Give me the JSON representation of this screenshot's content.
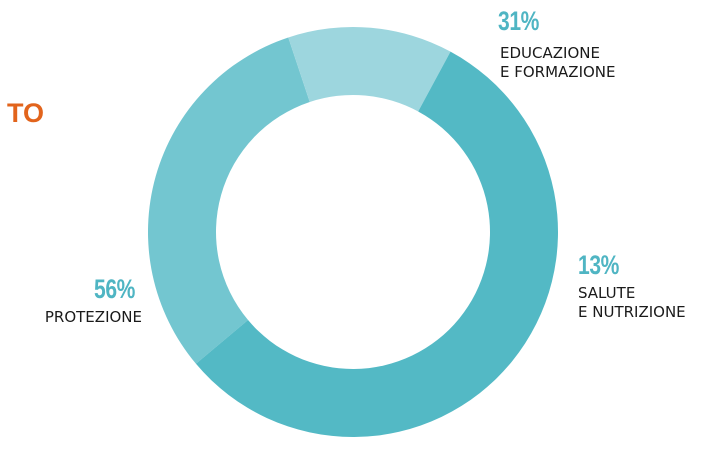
{
  "clipped_title_fragment": "TO",
  "colors": {
    "educazione": "#73c6d0",
    "salute": "#9dd6de",
    "protezione": "#53b9c5",
    "percent_text": "#4fb5c3",
    "title_orange": "#e2641c"
  },
  "chart_data": {
    "type": "pie",
    "donut": true,
    "slices": [
      {
        "percent_label": "31%",
        "value": 31,
        "label_lines": [
          "EDUCAZIONE",
          "E FORMAZIONE"
        ]
      },
      {
        "percent_label": "13%",
        "value": 13,
        "label_lines": [
          "SALUTE",
          "E NUTRIZIONE"
        ]
      },
      {
        "percent_label": "56%",
        "value": 56,
        "label_lines": [
          "PROTEZIONE"
        ]
      }
    ]
  }
}
